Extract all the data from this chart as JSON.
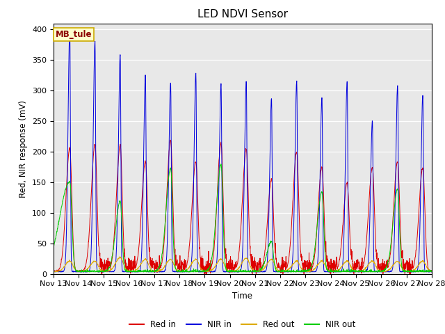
{
  "title": "LED NDVI Sensor",
  "ylabel": "Red, NIR response (mV)",
  "xlabel": "Time",
  "annotation": "MB_tule",
  "ylim": [
    0,
    410
  ],
  "xlim": [
    0,
    15
  ],
  "xtick_labels": [
    "Nov 13",
    "Nov 14",
    "Nov 15",
    "Nov 16",
    "Nov 17",
    "Nov 18",
    "Nov 19",
    "Nov 20",
    "Nov 21",
    "Nov 22",
    "Nov 23",
    "Nov 24",
    "Nov 25",
    "Nov 26",
    "Nov 27",
    "Nov 28"
  ],
  "legend_labels": [
    "Red in",
    "NIR in",
    "Red out",
    "NIR out"
  ],
  "line_colors": [
    "#dd0000",
    "#0000dd",
    "#ddaa00",
    "#00cc00"
  ],
  "bg_color": "#e8e8e8",
  "spike_positions": [
    0.65,
    1.65,
    2.65,
    3.65,
    4.65,
    5.65,
    6.65,
    7.65,
    8.65,
    9.65,
    10.65,
    11.65,
    12.65,
    13.65,
    14.65
  ],
  "nir_in_peaks": [
    400,
    380,
    358,
    325,
    313,
    328,
    310,
    315,
    287,
    315,
    288,
    315,
    250,
    308,
    292
  ],
  "red_in_peaks": [
    205,
    210,
    210,
    183,
    218,
    183,
    213,
    203,
    153,
    198,
    173,
    148,
    173,
    183,
    173
  ],
  "red_out_peaks": [
    20,
    20,
    26,
    23,
    23,
    23,
    23,
    25,
    23,
    20,
    20,
    20,
    20,
    20,
    20
  ],
  "nir_out_peaks": [
    150,
    5,
    118,
    5,
    172,
    5,
    178,
    5,
    52,
    5,
    133,
    5,
    5,
    138,
    5
  ],
  "nir_out_rise_slow": [
    true,
    false,
    false,
    false,
    false,
    false,
    false,
    false,
    false,
    false,
    false,
    false,
    false,
    false,
    false
  ],
  "base_value": 3,
  "noise_level": 2.5,
  "n_points": 2000
}
